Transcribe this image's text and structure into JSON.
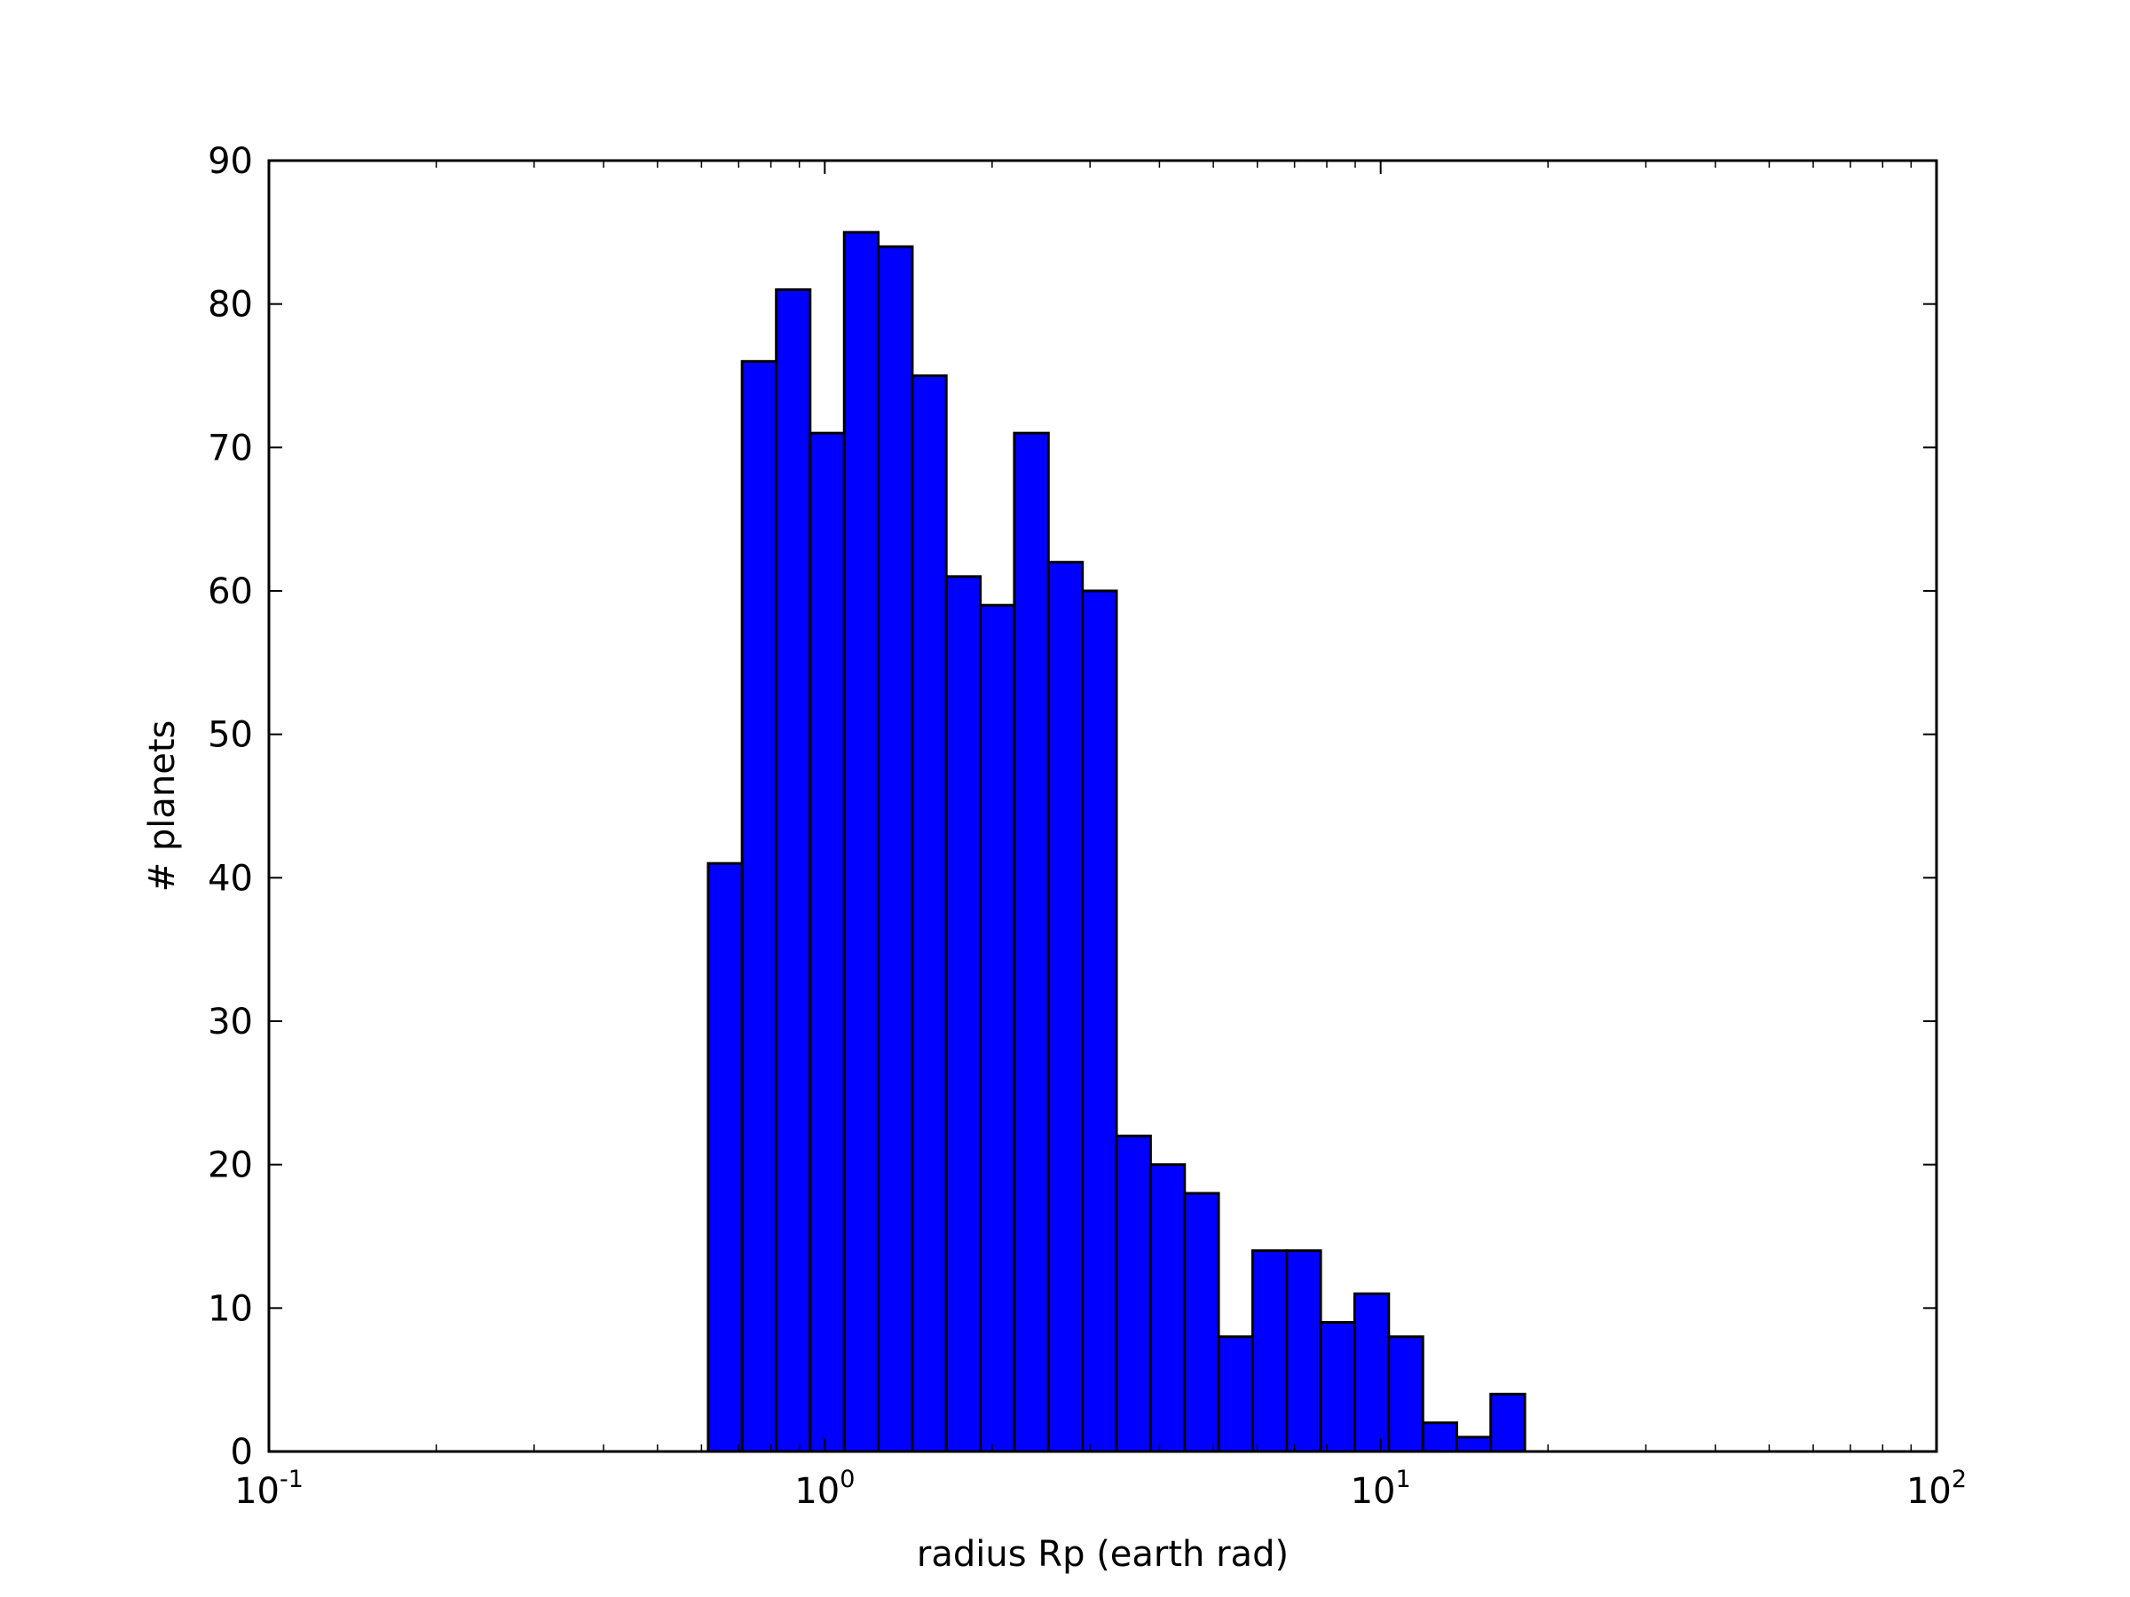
{
  "chart_data": {
    "type": "bar",
    "subtype": "histogram",
    "title": "",
    "xlabel": "radius Rp (earth rad)",
    "ylabel": "# planets",
    "xscale": "log",
    "xlim": [
      0.1,
      100
    ],
    "ylim": [
      0,
      90
    ],
    "yticks": [
      0,
      10,
      20,
      30,
      40,
      50,
      60,
      70,
      80,
      90
    ],
    "xticks": [
      {
        "value": 0.1,
        "base": "10",
        "exp": "-1"
      },
      {
        "value": 1,
        "base": "10",
        "exp": "0"
      },
      {
        "value": 10,
        "base": "10",
        "exp": "1"
      },
      {
        "value": 100,
        "base": "10",
        "exp": "2"
      }
    ],
    "bin_edges": [
      0.617,
      0.71,
      0.818,
      0.941,
      1.084,
      1.248,
      1.437,
      1.654,
      1.905,
      2.193,
      2.525,
      2.908,
      3.348,
      3.855,
      4.439,
      5.11,
      5.884,
      6.775,
      7.8,
      8.98,
      10.34,
      11.91,
      13.71,
      15.78,
      18.17
    ],
    "values": [
      41,
      76,
      81,
      71,
      85,
      84,
      75,
      61,
      59,
      71,
      62,
      60,
      22,
      20,
      18,
      8,
      14,
      14,
      9,
      11,
      8,
      2,
      1,
      4
    ],
    "bar_color": "#0000ff",
    "edge_color": "#000000",
    "grid": false,
    "legend": "none"
  }
}
